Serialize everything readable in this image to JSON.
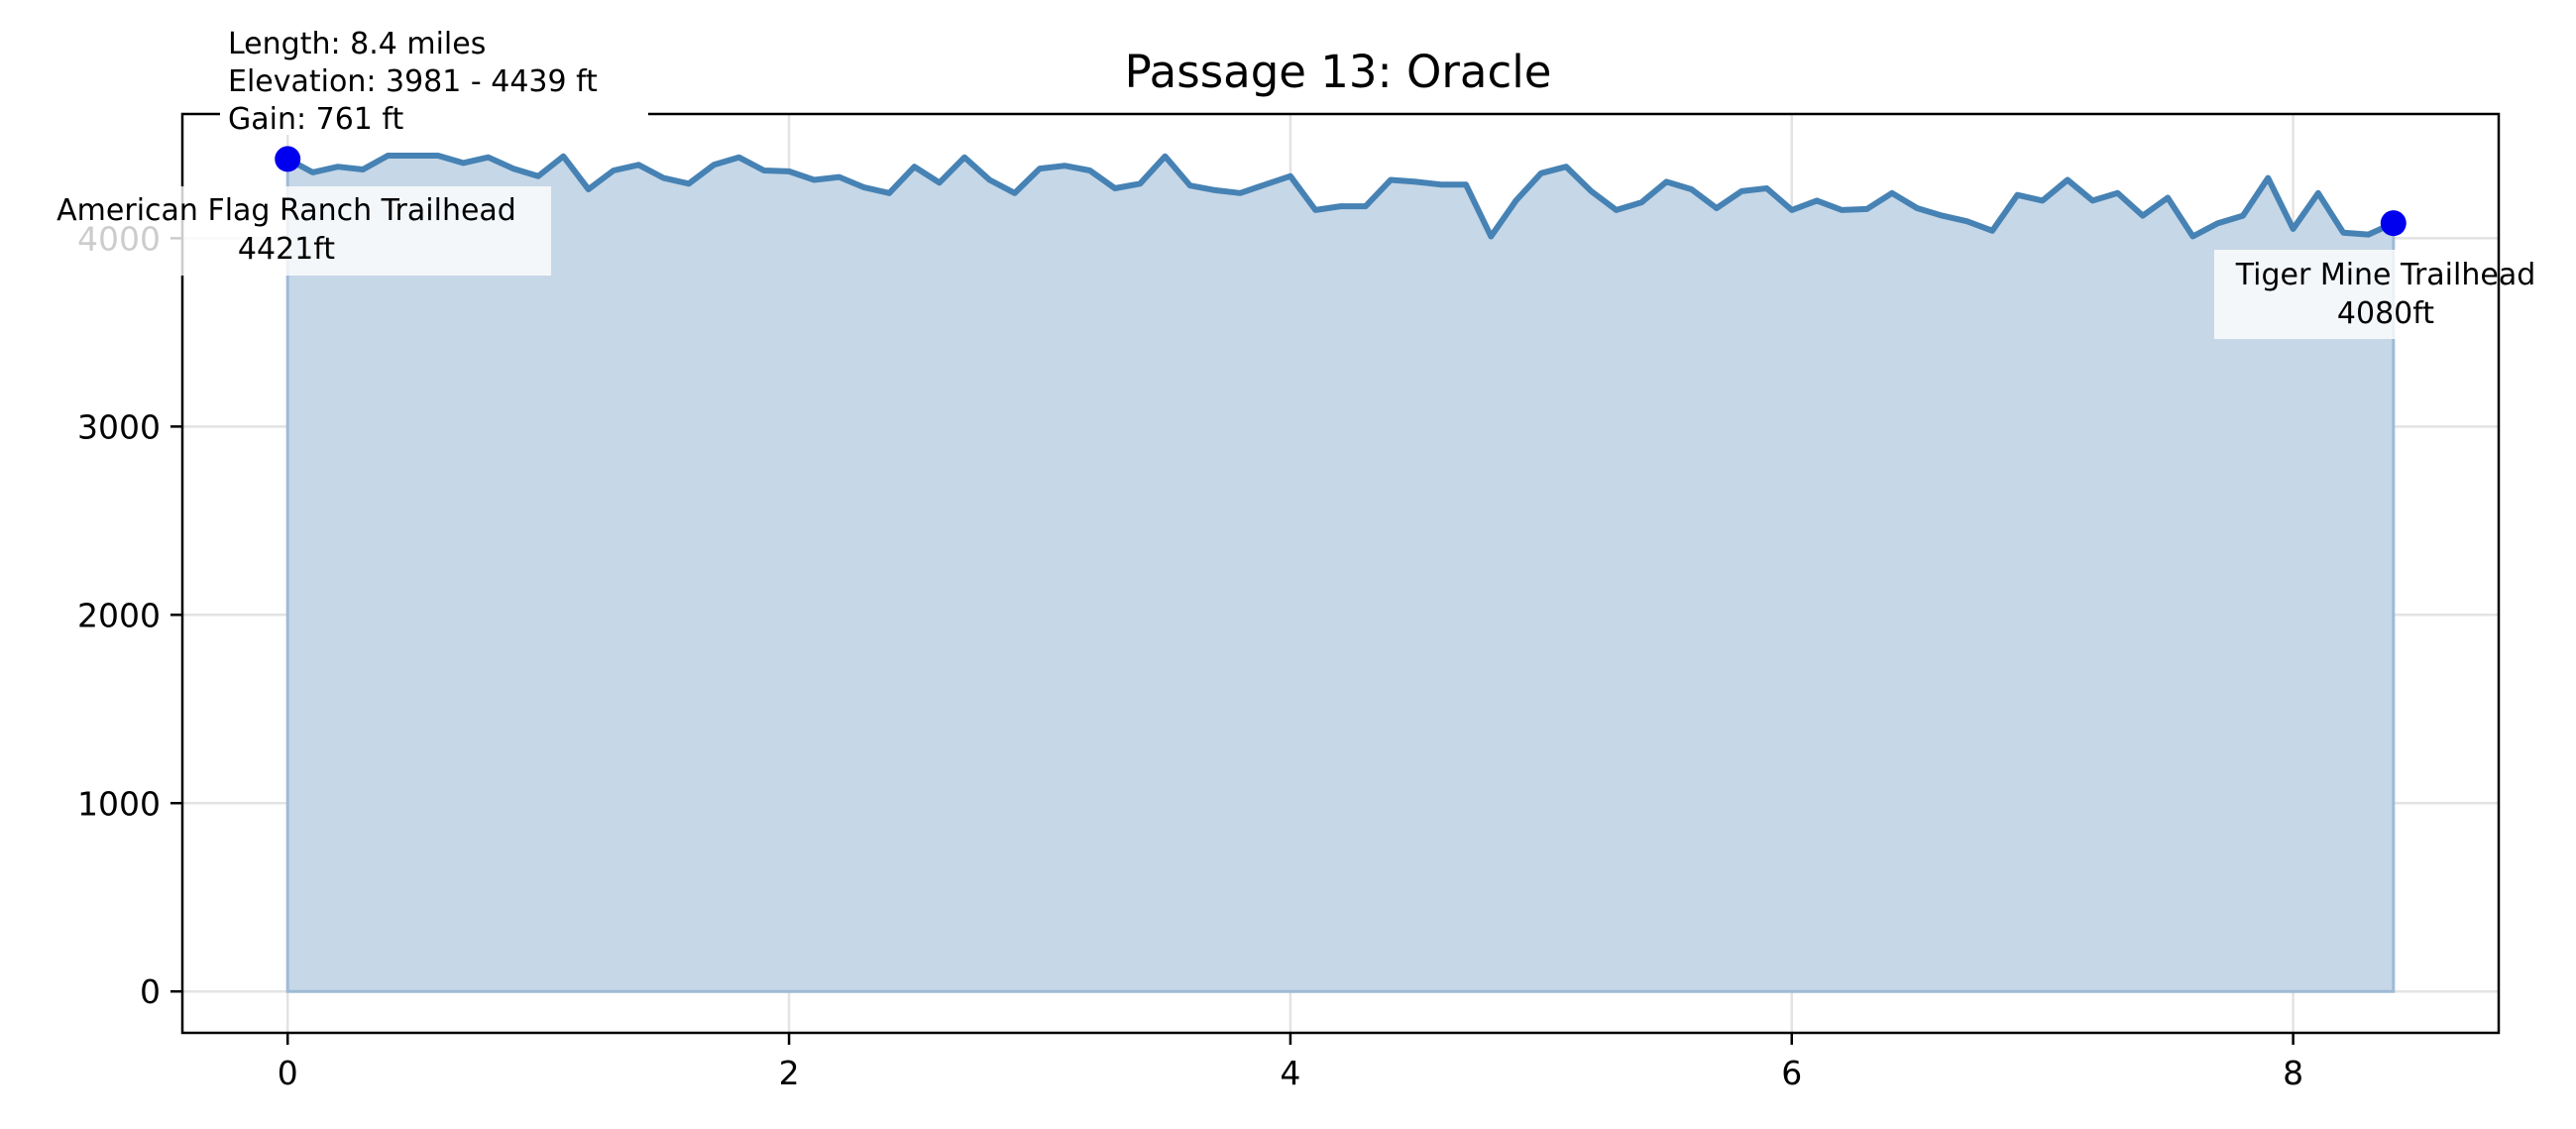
{
  "chart_data": {
    "type": "area",
    "title": "Passage 13: Oracle",
    "xlabel": "",
    "ylabel": "",
    "xlim": [
      -0.42,
      8.82
    ],
    "ylim": [
      -220,
      4660
    ],
    "xticks": [
      0,
      2,
      4,
      6,
      8
    ],
    "yticks": [
      0,
      1000,
      2000,
      3000,
      4000
    ],
    "grid": true,
    "colors": {
      "line": "#4682b4",
      "fill": "#c6d7e7",
      "marker": "#0000ee"
    },
    "series": [
      {
        "x": [
          0,
          0.1,
          0.2,
          0.3,
          0.4,
          0.5,
          0.6,
          0.7,
          0.8,
          0.9,
          1.0,
          1.1,
          1.2,
          1.3,
          1.4,
          1.5,
          1.6,
          1.7,
          1.8,
          1.9,
          2.0,
          2.1,
          2.2,
          2.3,
          2.4,
          2.5,
          2.6,
          2.7,
          2.8,
          2.9,
          3.0,
          3.1,
          3.2,
          3.3,
          3.4,
          3.5,
          3.6,
          3.7,
          3.8,
          3.9,
          4.0,
          4.1,
          4.2,
          4.3,
          4.4,
          4.5,
          4.6,
          4.7,
          4.8,
          4.9,
          5.0,
          5.1,
          5.2,
          5.3,
          5.4,
          5.5,
          5.6,
          5.7,
          5.8,
          5.9,
          6.0,
          6.1,
          6.2,
          6.3,
          6.4,
          6.5,
          6.6,
          6.7,
          6.8,
          6.9,
          7.0,
          7.1,
          7.2,
          7.3,
          7.4,
          7.5,
          7.6,
          7.7,
          7.8,
          7.9,
          8.0,
          8.1,
          8.2,
          8.3,
          8.4
        ],
        "y": [
          4421,
          4350,
          4380,
          4365,
          4439,
          4439,
          4439,
          4400,
          4430,
          4370,
          4330,
          4435,
          4260,
          4360,
          4390,
          4320,
          4290,
          4390,
          4430,
          4360,
          4355,
          4310,
          4325,
          4270,
          4240,
          4380,
          4295,
          4430,
          4310,
          4240,
          4370,
          4385,
          4360,
          4265,
          4290,
          4435,
          4280,
          4255,
          4240,
          4285,
          4330,
          4150,
          4170,
          4170,
          4310,
          4300,
          4285,
          4285,
          4010,
          4200,
          4345,
          4380,
          4250,
          4150,
          4190,
          4300,
          4260,
          4160,
          4250,
          4265,
          4150,
          4200,
          4150,
          4155,
          4240,
          4160,
          4120,
          4090,
          4040,
          4230,
          4200,
          4310,
          4200,
          4240,
          4120,
          4215,
          4010,
          4080,
          4120,
          4320,
          4050,
          4240,
          4030,
          4020,
          4080
        ]
      }
    ],
    "endpoints": [
      {
        "x": 0,
        "y": 4421,
        "name": "American Flag Ranch Trailhead",
        "elev_label": "4421ft"
      },
      {
        "x": 8.4,
        "y": 4080,
        "name": "Tiger Mine Trailhead",
        "elev_label": "4080ft"
      }
    ],
    "stats": {
      "length": "Length: 8.4 miles",
      "elevation": "Elevation: 3981 - 4439 ft",
      "gain": "Gain: 761 ft"
    }
  }
}
